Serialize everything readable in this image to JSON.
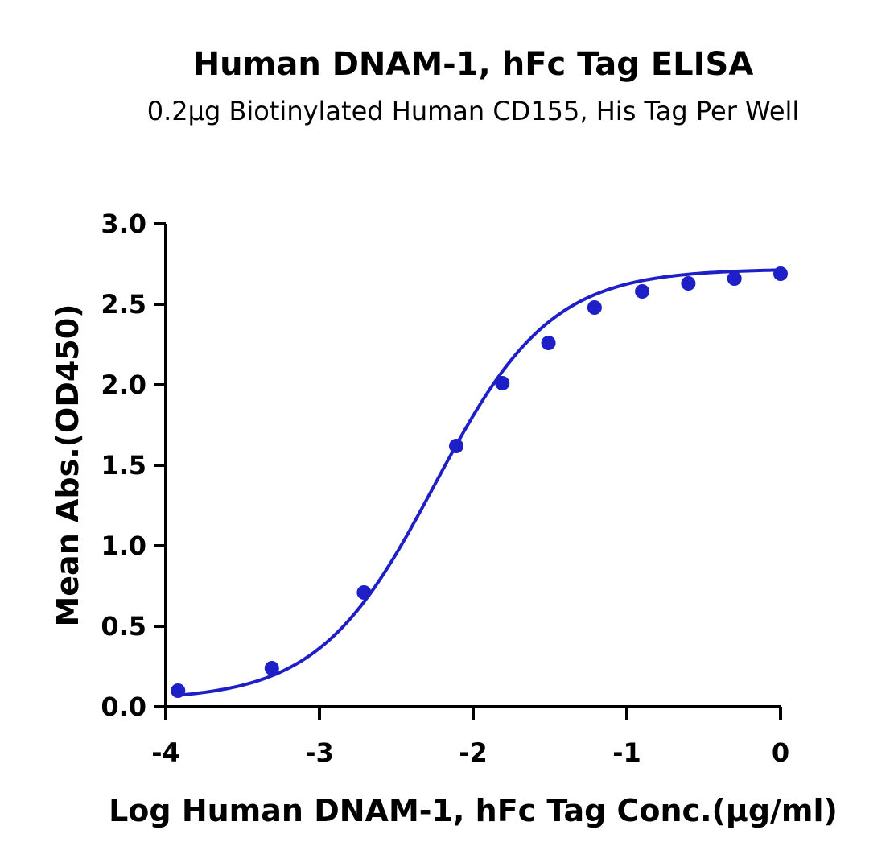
{
  "chart_data": {
    "type": "line",
    "title": "Human DNAM-1, hFc Tag ELISA",
    "subtitle": "0.2µg Biotinylated Human CD155, His Tag Per Well",
    "xlabel": "Log Human DNAM-1, hFc Tag Conc.(µg/ml)",
    "ylabel": "Mean Abs.(OD450)",
    "xlim": [
      -4,
      0
    ],
    "ylim": [
      0,
      3
    ],
    "x_ticks": [
      -4,
      -3,
      -2,
      -1,
      0
    ],
    "x_tick_labels": [
      "-4",
      "-3",
      "-2",
      "-1",
      "0"
    ],
    "y_ticks": [
      0,
      0.5,
      1,
      1.5,
      2,
      2.5,
      3
    ],
    "y_tick_labels": [
      "0.0",
      "0.5",
      "1.0",
      "1.5",
      "2.0",
      "2.5",
      "3.0"
    ],
    "grid": false,
    "legend": "none",
    "series": [
      {
        "color": "#1f1fc8",
        "x": [
          -3.92,
          -3.31,
          -2.71,
          -2.11,
          -1.81,
          -1.51,
          -1.21,
          -0.9,
          -0.6,
          -0.3,
          0.0
        ],
        "y": [
          0.1,
          0.24,
          0.71,
          1.62,
          2.01,
          2.26,
          2.48,
          2.58,
          2.63,
          2.66,
          2.69
        ],
        "fit_curve": {
          "model": "4PL",
          "bottom": 0.04,
          "top": 2.72,
          "log_ec50": -2.25,
          "hill_slope": 1.15
        }
      }
    ]
  }
}
